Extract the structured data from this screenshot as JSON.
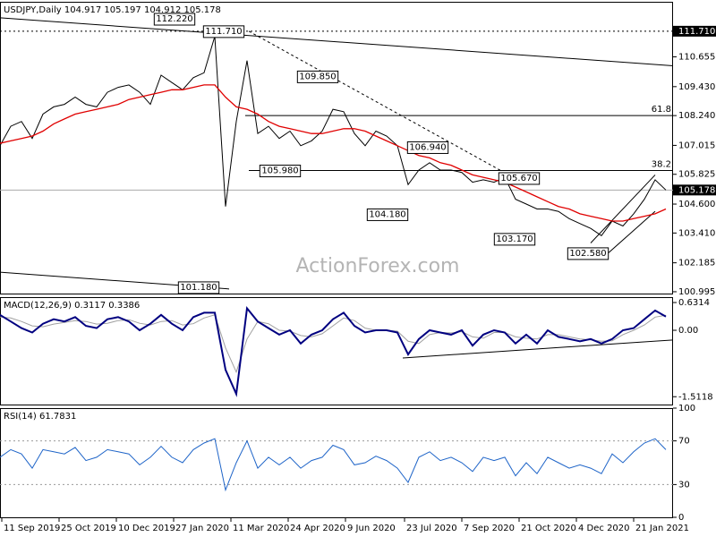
{
  "chart_data": [
    {
      "type": "line",
      "title": "USDJPY,Daily  104.917 105.197 104.912 105.178",
      "watermark": "ActionForex.com",
      "xlim": [
        0,
        376
      ],
      "ylim": [
        100.92,
        112.92
      ],
      "yticks": [
        {
          "value": 110.655,
          "label": "110.655"
        },
        {
          "value": 109.43,
          "label": "109.430"
        },
        {
          "value": 108.24,
          "label": "108.240"
        },
        {
          "value": 107.015,
          "label": "107.015"
        },
        {
          "value": 105.825,
          "label": "105.825"
        },
        {
          "value": 104.6,
          "label": "104.600"
        },
        {
          "value": 103.41,
          "label": "103.410"
        },
        102.185,
        100.995
      ],
      "x": [
        0,
        6,
        12,
        18,
        24,
        30,
        36,
        42,
        48,
        54,
        60,
        66,
        72,
        78,
        84,
        90,
        96,
        102,
        108,
        114,
        120,
        126,
        132,
        138,
        144,
        150,
        156,
        162,
        168,
        174,
        180,
        186,
        192,
        198,
        204,
        210,
        216,
        222,
        228,
        234,
        240,
        246,
        252,
        258,
        264,
        270,
        276,
        282,
        288,
        294,
        300,
        306,
        312,
        318,
        324,
        330,
        336,
        342,
        348,
        354,
        360,
        366,
        372
      ],
      "series": [
        {
          "name": "Close",
          "color": "#000000",
          "width": 1,
          "values": [
            107.0,
            107.8,
            108.0,
            107.3,
            108.3,
            108.6,
            108.7,
            109.0,
            108.7,
            108.6,
            109.2,
            109.4,
            109.5,
            109.2,
            108.7,
            109.9,
            109.6,
            109.3,
            109.8,
            110.0,
            111.5,
            104.5,
            108.0,
            110.5,
            107.5,
            107.8,
            107.3,
            107.6,
            107.0,
            107.2,
            107.6,
            108.5,
            108.4,
            107.5,
            107.0,
            107.6,
            107.4,
            107.0,
            105.4,
            106.0,
            106.3,
            106.0,
            106.0,
            105.9,
            105.5,
            105.6,
            105.5,
            105.7,
            104.8,
            104.6,
            104.4,
            104.4,
            104.3,
            104.0,
            103.8,
            103.6,
            103.3,
            103.9,
            103.7,
            104.2,
            104.8,
            105.6,
            105.18
          ]
        },
        {
          "name": "MA",
          "color": "#e00000",
          "width": 1.3,
          "values": [
            107.1,
            107.2,
            107.3,
            107.4,
            107.6,
            107.9,
            108.1,
            108.3,
            108.4,
            108.5,
            108.6,
            108.7,
            108.9,
            109.0,
            109.1,
            109.2,
            109.3,
            109.3,
            109.4,
            109.5,
            109.5,
            109.0,
            108.6,
            108.5,
            108.3,
            108.0,
            107.8,
            107.7,
            107.6,
            107.5,
            107.5,
            107.6,
            107.7,
            107.7,
            107.6,
            107.4,
            107.2,
            107.0,
            106.8,
            106.6,
            106.5,
            106.3,
            106.2,
            106.0,
            105.8,
            105.7,
            105.6,
            105.5,
            105.3,
            105.1,
            104.9,
            104.7,
            104.5,
            104.4,
            104.2,
            104.1,
            104.0,
            103.9,
            103.9,
            104.0,
            104.1,
            104.2,
            104.4
          ]
        }
      ],
      "hlines": [
        {
          "value": 111.71,
          "from": 0,
          "style": "dotted"
        },
        {
          "value": 108.24,
          "from": 137,
          "label": "61.8"
        },
        {
          "value": 105.98,
          "from": 139,
          "label": "38.2"
        },
        {
          "value": 105.178,
          "from": 0,
          "style": "gray"
        }
      ],
      "trendlines": [
        {
          "from": [
            0,
            112.26
          ],
          "to": [
            376,
            110.29
          ]
        },
        {
          "from": [
            0,
            101.8
          ],
          "to": [
            128,
            101.11
          ]
        },
        {
          "from": [
            139,
            111.71
          ],
          "to": [
            280,
            105.97
          ],
          "style": "dashed"
        },
        {
          "from": [
            330,
            103.0
          ],
          "to": [
            366,
            105.8
          ]
        },
        {
          "from": [
            340,
            102.6
          ],
          "to": [
            366,
            104.3
          ]
        }
      ],
      "annotations": [
        {
          "label": "112.220",
          "value": 112.22,
          "x": 97.5
        },
        {
          "label": "111.710",
          "value": 111.71,
          "x": 125
        },
        {
          "label": "109.850",
          "value": 109.85,
          "x": 177.5
        },
        {
          "label": "106.940",
          "value": 106.94,
          "x": 239
        },
        {
          "label": "105.980",
          "value": 105.98,
          "x": 156.5
        },
        {
          "label": "105.670",
          "value": 105.67,
          "x": 290
        },
        {
          "label": "104.180",
          "value": 104.18,
          "x": 216.5
        },
        {
          "label": "103.170",
          "value": 103.17,
          "x": 287.5
        },
        {
          "label": "102.580",
          "value": 102.58,
          "x": 328.5
        },
        {
          "label": "101.180",
          "value": 101.18,
          "x": 111
        }
      ],
      "price_tags": [
        {
          "value": 111.71,
          "label": "111.710"
        },
        {
          "value": 105.178,
          "label": "105.178"
        }
      ]
    },
    {
      "type": "line",
      "title": "MACD(12,26,9) 0.3117 0.3386",
      "xlim": [
        0,
        376
      ],
      "ylim": [
        -1.69,
        0.754
      ],
      "yticks": [
        0.6314,
        {
          "value": 0,
          "label": "0.00"
        },
        -1.5118
      ],
      "x": [
        0,
        6,
        12,
        18,
        24,
        30,
        36,
        42,
        48,
        54,
        60,
        66,
        72,
        78,
        84,
        90,
        96,
        102,
        108,
        114,
        120,
        126,
        132,
        138,
        144,
        150,
        156,
        162,
        168,
        174,
        180,
        186,
        192,
        198,
        204,
        210,
        216,
        222,
        228,
        234,
        240,
        246,
        252,
        258,
        264,
        270,
        276,
        282,
        288,
        294,
        300,
        306,
        312,
        318,
        324,
        330,
        336,
        342,
        348,
        354,
        360,
        366,
        372
      ],
      "series": [
        {
          "name": "Signal",
          "color": "#a0a0a0",
          "width": 1,
          "values": [
            0.3,
            0.28,
            0.2,
            0.1,
            0.08,
            0.14,
            0.18,
            0.22,
            0.2,
            0.14,
            0.16,
            0.22,
            0.24,
            0.16,
            0.12,
            0.2,
            0.22,
            0.12,
            0.15,
            0.28,
            0.35,
            -0.4,
            -0.95,
            -0.2,
            0.2,
            0.15,
            0.0,
            -0.02,
            -0.12,
            -0.15,
            -0.08,
            0.1,
            0.28,
            0.22,
            0.05,
            0.0,
            0.0,
            -0.02,
            -0.25,
            -0.3,
            -0.1,
            -0.05,
            -0.06,
            -0.03,
            -0.15,
            -0.18,
            -0.05,
            -0.05,
            -0.15,
            -0.18,
            -0.2,
            -0.1,
            -0.1,
            -0.15,
            -0.2,
            -0.22,
            -0.25,
            -0.24,
            -0.1,
            0.0,
            0.12,
            0.3,
            0.34
          ]
        },
        {
          "name": "MACD",
          "color": "#000080",
          "width": 2,
          "values": [
            0.35,
            0.2,
            0.05,
            -0.05,
            0.15,
            0.25,
            0.2,
            0.3,
            0.1,
            0.05,
            0.25,
            0.3,
            0.2,
            0.0,
            0.15,
            0.35,
            0.15,
            0.0,
            0.3,
            0.4,
            0.4,
            -0.9,
            -1.45,
            0.5,
            0.2,
            0.05,
            -0.1,
            0.0,
            -0.3,
            -0.1,
            0.0,
            0.25,
            0.4,
            0.1,
            -0.05,
            0.0,
            0.0,
            -0.05,
            -0.55,
            -0.2,
            0.0,
            -0.05,
            -0.1,
            0.0,
            -0.35,
            -0.1,
            0.0,
            -0.05,
            -0.3,
            -0.1,
            -0.3,
            0.0,
            -0.15,
            -0.2,
            -0.25,
            -0.2,
            -0.3,
            -0.2,
            0.0,
            0.05,
            0.25,
            0.45,
            0.31
          ]
        }
      ],
      "trendlines": [
        {
          "from": [
            225,
            -0.63
          ],
          "to": [
            376,
            -0.22
          ]
        }
      ]
    },
    {
      "type": "line",
      "title": "RSI(14) 61.7831",
      "xlim": [
        0,
        376
      ],
      "ylim": [
        0,
        100
      ],
      "yticks": [
        100,
        70,
        30,
        0
      ],
      "levels": [
        70,
        30
      ],
      "x": [
        0,
        6,
        12,
        18,
        24,
        30,
        36,
        42,
        48,
        54,
        60,
        66,
        72,
        78,
        84,
        90,
        96,
        102,
        108,
        114,
        120,
        126,
        132,
        138,
        144,
        150,
        156,
        162,
        168,
        174,
        180,
        186,
        192,
        198,
        204,
        210,
        216,
        222,
        228,
        234,
        240,
        246,
        252,
        258,
        264,
        270,
        276,
        282,
        288,
        294,
        300,
        306,
        312,
        318,
        324,
        330,
        336,
        342,
        348,
        354,
        360,
        366,
        372
      ],
      "series": [
        {
          "name": "RSI",
          "color": "#1e64c8",
          "width": 1,
          "values": [
            55,
            62,
            58,
            45,
            62,
            60,
            58,
            64,
            52,
            55,
            62,
            60,
            58,
            48,
            55,
            65,
            55,
            50,
            62,
            68,
            72,
            25,
            50,
            70,
            45,
            55,
            48,
            55,
            45,
            52,
            55,
            66,
            62,
            48,
            50,
            56,
            52,
            45,
            32,
            55,
            60,
            52,
            55,
            50,
            42,
            55,
            52,
            55,
            38,
            50,
            40,
            55,
            50,
            45,
            48,
            45,
            40,
            58,
            50,
            60,
            68,
            72,
            62
          ]
        }
      ],
      "xticks": [
        {
          "value": 1,
          "label": "11 Sep 2019"
        },
        {
          "value": 33,
          "label": "25 Oct 2019"
        },
        {
          "value": 65,
          "label": "10 Dec 2019"
        },
        {
          "value": 97,
          "label": "27 Jan 2020"
        },
        {
          "value": 129,
          "label": "11 Mar 2020"
        },
        {
          "value": 161,
          "label": "24 Apr 2020"
        },
        {
          "value": 193,
          "label": "9 Jun 2020"
        },
        {
          "value": 226,
          "label": "23 Jul 2020"
        },
        {
          "value": 258,
          "label": "7 Sep 2020"
        },
        {
          "value": 290,
          "label": "21 Oct 2020"
        },
        {
          "value": 322,
          "label": "4 Dec 2020"
        },
        {
          "value": 354,
          "label": "21 Jan 2021"
        }
      ]
    }
  ]
}
